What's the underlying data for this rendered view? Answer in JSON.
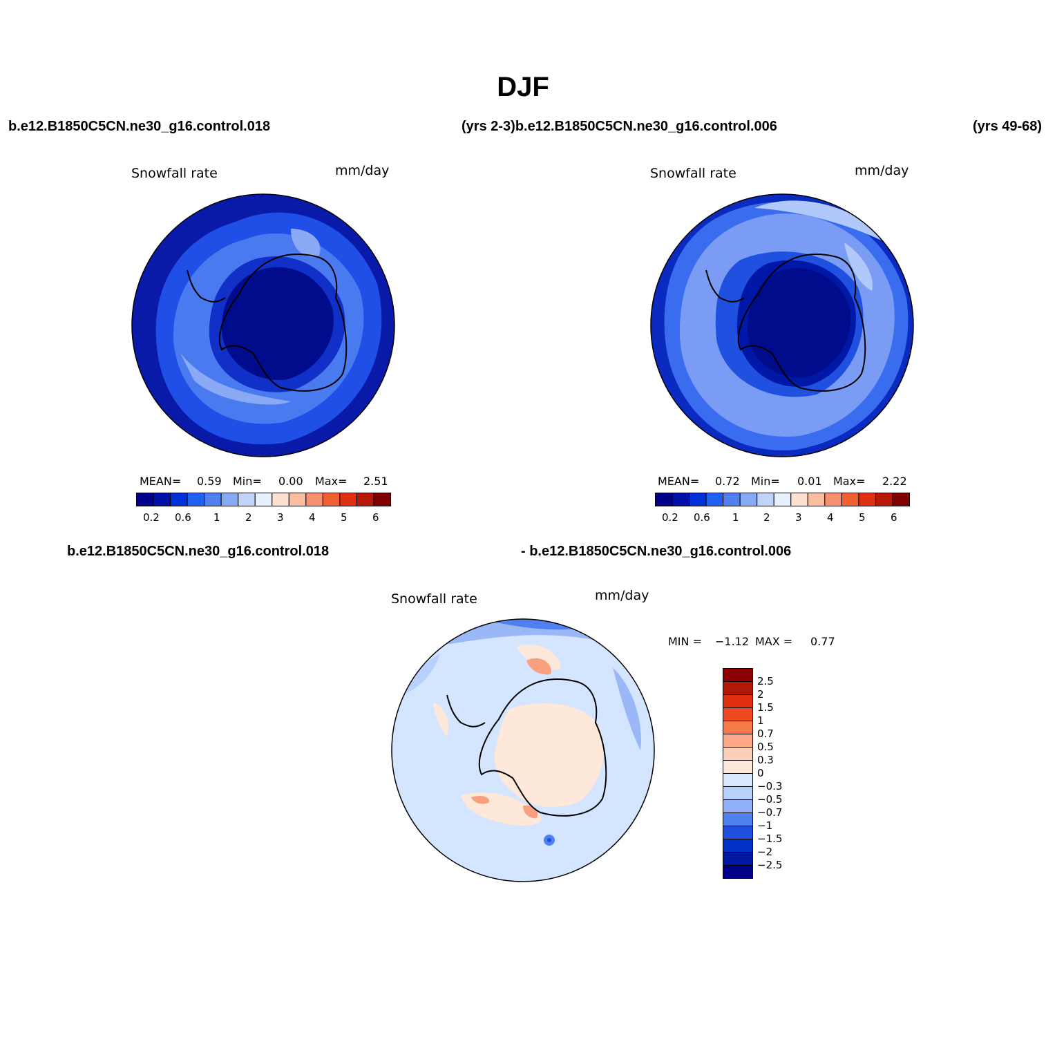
{
  "title": "DJF",
  "case_labels": {
    "top_left": "b.e12.B1850C5CN.ne30_g16.control.018",
    "top_middle": "(yrs 2-3)b.e12.B1850C5CN.ne30_g16.control.006",
    "top_right": "(yrs 49-68)",
    "bottom_left": "b.e12.B1850C5CN.ne30_g16.control.018",
    "bottom_right": "- b.e12.B1850C5CN.ne30_g16.control.006"
  },
  "panels": [
    {
      "variable": "Snowfall rate",
      "units": "mm/day",
      "stats": {
        "mean_label": "MEAN=",
        "mean": "0.59",
        "min_label": "Min=",
        "min": "0.00",
        "max_label": "Max=",
        "max": "2.51"
      }
    },
    {
      "variable": "Snowfall rate",
      "units": "mm/day",
      "stats": {
        "mean_label": "MEAN=",
        "mean": "0.72",
        "min_label": "Min=",
        "min": "0.01",
        "max_label": "Max=",
        "max": "2.22"
      }
    },
    {
      "variable": "Snowfall rate",
      "units": "mm/day",
      "stats": {
        "min_label": "MIN =",
        "min": "−1.12",
        "max_label": "MAX =",
        "max": "0.77"
      }
    }
  ],
  "colorbar_field": {
    "colors": [
      "#00008b",
      "#0010a8",
      "#0030d8",
      "#2060f0",
      "#5080f0",
      "#88aaf5",
      "#c0d4fa",
      "#e6f0ff",
      "#fde0d0",
      "#fcbca0",
      "#f89070",
      "#f06030",
      "#e03010",
      "#b81808",
      "#800000"
    ],
    "tick_labels": [
      "0.2",
      "0.6",
      "1",
      "2",
      "3",
      "4",
      "5",
      "6"
    ]
  },
  "colorbar_diff": {
    "colors": [
      "#8b0000",
      "#b01808",
      "#e03010",
      "#f04820",
      "#f87848",
      "#fca888",
      "#fcd0b8",
      "#fde8da",
      "#d8e8ff",
      "#b8d0fc",
      "#90b0f8",
      "#5080f0",
      "#2050e0",
      "#0030c8",
      "#0018a0",
      "#00008b"
    ],
    "tick_labels": [
      "2.5",
      "2",
      "1.5",
      "1",
      "0.7",
      "0.5",
      "0.3",
      "0",
      "−0.3",
      "−0.5",
      "−0.7",
      "−1",
      "−1.5",
      "−2",
      "−2.5"
    ]
  }
}
